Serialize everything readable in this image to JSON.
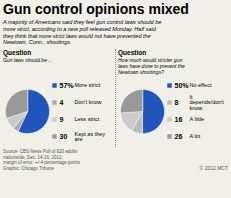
{
  "title": "Gun control opinions mixed",
  "subtitle": "A majority of Americans said they feel gun control laws should be\nmore strict, according to a new poll released Monday. Half said\nthey think that more strict laws would not have prevented the\nNewtown, Conn., shootings.",
  "source": "Source: CBS News Poll of 620 adults\nnationwide, Dec. 14-16, 2012;\nmargin of error: +/-4 percentage points\nGraphic: Chicago Tribune",
  "copyright": "© 2012 MCT",
  "chart_data": [
    {
      "type": "pie",
      "title": "Question",
      "subtitle": "Gun laws should be ...",
      "categories": [
        "More strict",
        "Don't know",
        "Less strict",
        "Kept as they are"
      ],
      "values": [
        57,
        4,
        9,
        30
      ],
      "value_labels": [
        "57%",
        "4",
        "9",
        "30"
      ],
      "colors": [
        "#2255bb",
        "#aaaaaa",
        "#cccccc",
        "#999999"
      ],
      "data_labels": true
    },
    {
      "type": "pie",
      "title": "Question",
      "subtitle": "How much would stricter gun\nlaws have done to prevent the\nNewtown shootings?",
      "categories": [
        "No effect",
        "It depends/don't know",
        "A little",
        "A lot"
      ],
      "values": [
        50,
        8,
        16,
        26
      ],
      "value_labels": [
        "50%",
        "8",
        "16",
        "26"
      ],
      "colors": [
        "#2255bb",
        "#bbbbbb",
        "#cccccc",
        "#999999"
      ],
      "data_labels": true
    }
  ]
}
